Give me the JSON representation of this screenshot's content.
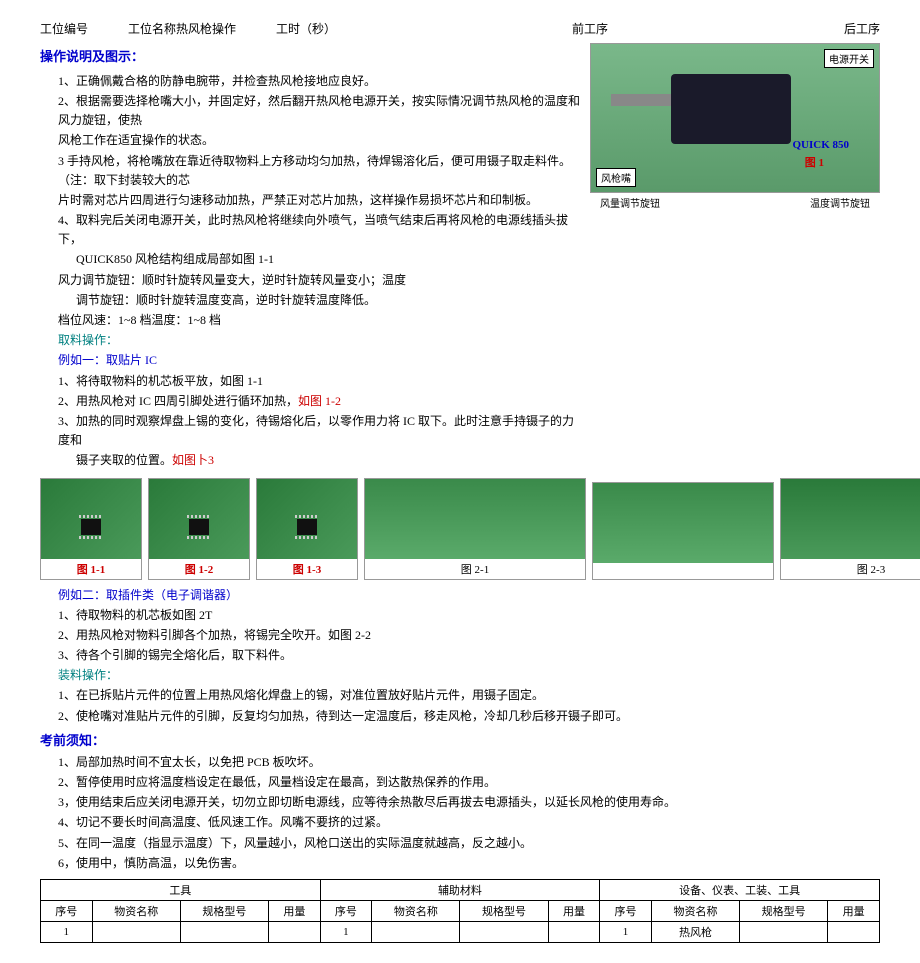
{
  "header": {
    "col1_label": "工位编号",
    "col2_label": "工位名称",
    "col2_value": "热风枪操作",
    "col3_label": "工时（秒）",
    "col4_label": "前工序",
    "col5_label": "后工序"
  },
  "section1": {
    "title": "操作说明及图示：",
    "lines": [
      "1、正确佩戴合格的防静电腕带，并检查热风枪接地应良好。",
      "2、根据需要选择枪嘴大小，并固定好，然后翻开热风枪电源开关，按实际情况调节热风枪的温度和风力旋钮，使热",
      "风枪工作在适宜操作的状态。",
      "3 手持风枪，将枪嘴放在靠近待取物料上方移动均匀加热，待焊锡溶化后，便可用镊子取走料件。（注：取下封装较大的芯",
      "片时需对芯片四周进行匀速移动加热，严禁正对芯片加热，这样操作易损坏芯片和印制板。",
      "4、取料完后关闭电源开关，此时热风枪将继续向外喷气，当喷气结束后再将风枪的电源线插头拔下，"
    ],
    "quick": "QUICK850 风枪结构组成局部如图 1-1",
    "wind": "风力调节旋钮：顺时针旋转风量变大，逆时针旋转风量变小；温度",
    "temp": "调节旋钮：顺时针旋转温度变高，逆时针旋转温度降低。",
    "range": "档位风速：1~8 档温度：1~8 档"
  },
  "diagram": {
    "power_switch": "电源开关",
    "nozzle": "风枪嘴",
    "device_name": "QUICK 850",
    "fig_caption": "图 1",
    "air_knob": "风量调节旋钮",
    "temp_knob": "温度调节旋钮"
  },
  "pickup": {
    "title": "取料操作：",
    "example1_title": "例如一：取贴片 IC",
    "ex1_l1": "1、将待取物料的机芯板平放，如图 1-1",
    "ex1_l2": "2、用热风枪对 IC 四周引脚处进行循环加热，",
    "ex1_l2_suffix": "如图 1-2",
    "ex1_l3": "3、加热的同时观察焊盘上锡的变化，待锡熔化后，以零作用力将 IC 取下。此时注意手持镊子的力度和",
    "ex1_l4": "镊子夹取的位置。",
    "ex1_l4_suffix": "如图卜3"
  },
  "photos": {
    "p11": "图 1-1",
    "p12": "图 1-2",
    "p13": "图 1-3",
    "p21": "图 2-1",
    "p23": "图 2-3"
  },
  "example2": {
    "title": "例如二：取插件类（电子调谐器）",
    "l1": "1、待取物料的机芯板如图 2T",
    "l2": "2、用热风枪对物料引脚各个加热，将锡完全吹开。如图 2-2",
    "l3": "3、待各个引脚的锡完全熔化后，取下料件。"
  },
  "mount": {
    "title": "装料操作：",
    "l1": "1、在已拆贴片元件的位置上用热风熔化焊盘上的锡，对准位置放好贴片元件，用镊子固定。",
    "l2": "2、使枪嘴对准贴片元件的引脚，反复均匀加热，待到达一定温度后，移走风枪，冷却几秒后移开镊子即可。"
  },
  "exam": {
    "title": "考前须知：",
    "l1": "1、局部加热时间不宜太长，以免把 PCB 板吹坏。",
    "l2": "2、暂停使用时应将温度档设定在最低，风量档设定在最高，到达散热保养的作用。",
    "l3": "3，使用结束后应关闭电源开关，切勿立即切断电源线，应等待余热散尽后再拔去电源插头，以延长风枪的使用寿命。",
    "l4": "4、切记不要长时间高温度、低风速工作。风嘴不要挤的过紧。",
    "l5": "5、在同一温度（指显示温度）下，风量越小，风枪口送出的实际温度就越高，反之越小。",
    "l6": "6，使用中，慎防高温，以免伤害。"
  },
  "table": {
    "group1": "工具",
    "group2": "辅助材料",
    "group3": "设备、仪表、工装、工具",
    "h_seq": "序号",
    "h_name": "物资名称",
    "h_spec": "规格型号",
    "h_qty": "用量",
    "row1_seq": "1",
    "row1_name_c": "热风枪"
  }
}
